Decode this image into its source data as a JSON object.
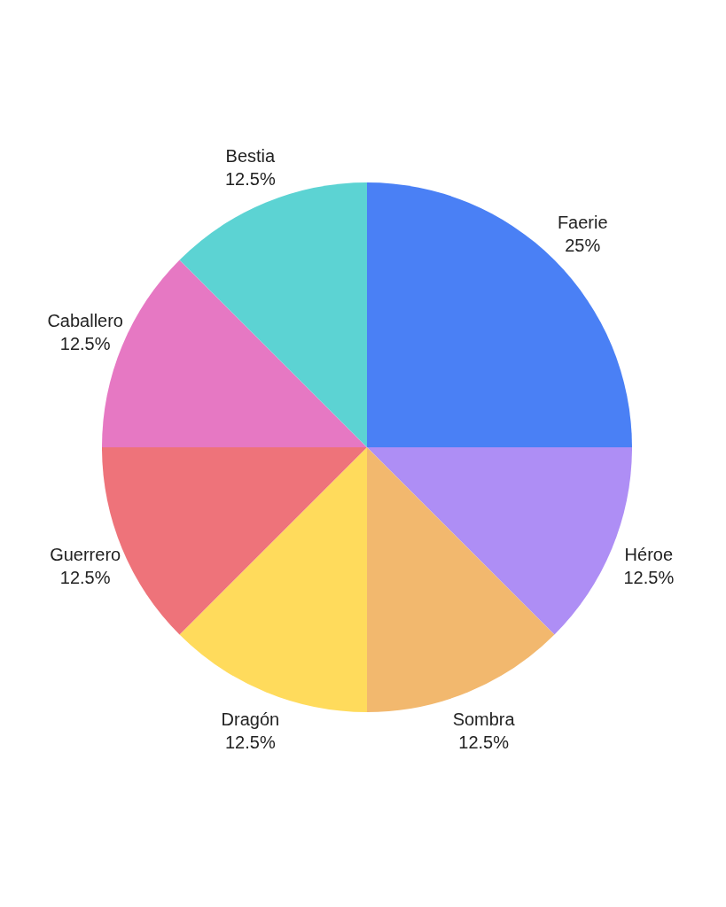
{
  "chart_data": {
    "type": "pie",
    "categories": [
      "Faerie",
      "Héroe",
      "Sombra",
      "Dragón",
      "Guerrero",
      "Caballero",
      "Bestia"
    ],
    "values": [
      25,
      12.5,
      12.5,
      12.5,
      12.5,
      12.5,
      12.5
    ],
    "value_labels": [
      "25%",
      "12.5%",
      "12.5%",
      "12.5%",
      "12.5%",
      "12.5%",
      "12.5%"
    ],
    "colors": [
      "#4a80f5",
      "#ae8ef5",
      "#f2b86e",
      "#ffdb5c",
      "#ee737a",
      "#e678c3",
      "#5cd3d3"
    ]
  }
}
